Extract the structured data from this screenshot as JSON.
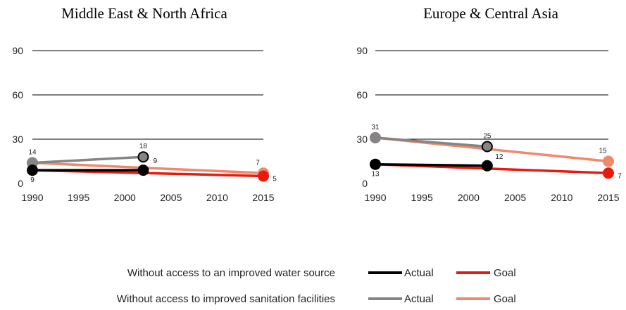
{
  "colors": {
    "water_actual": "#000000",
    "water_goal": "#e8190f",
    "sanitation_actual": "#858585",
    "sanitation_goal": "#f0896c",
    "grid": "#000000",
    "text": "#222222"
  },
  "chart_data": [
    {
      "type": "line",
      "title": "Middle East & North Africa",
      "xlim": [
        1990,
        2015
      ],
      "ylim": [
        0,
        90
      ],
      "x_ticks": [
        "1990",
        "1995",
        "2000",
        "2005",
        "2010",
        "2015"
      ],
      "y_ticks": [
        "0",
        "30",
        "60",
        "90"
      ],
      "grid": true,
      "series": [
        {
          "key": "sanitation_goal",
          "name": "Goal",
          "points": [
            [
              1990,
              14
            ],
            [
              2015,
              7
            ]
          ],
          "markers": [
            1,
            1
          ],
          "labels": [
            null,
            "7"
          ]
        },
        {
          "key": "sanitation_actual",
          "name": "Actual",
          "points": [
            [
              1990,
              14
            ],
            [
              2002,
              18
            ]
          ],
          "markers": [
            1,
            1
          ],
          "labels": [
            "14",
            "18"
          ]
        },
        {
          "key": "water_goal",
          "name": "Goal",
          "points": [
            [
              1990,
              9
            ],
            [
              2015,
              5
            ]
          ],
          "markers": [
            0,
            1
          ],
          "labels": [
            null,
            "5"
          ]
        },
        {
          "key": "water_actual",
          "name": "Actual",
          "points": [
            [
              1990,
              9
            ],
            [
              2002,
              9
            ]
          ],
          "markers": [
            1,
            1
          ],
          "labels": [
            "9",
            "9"
          ]
        }
      ]
    },
    {
      "type": "line",
      "title": "Europe & Central Asia",
      "xlim": [
        1990,
        2015
      ],
      "ylim": [
        0,
        90
      ],
      "x_ticks": [
        "1990",
        "1995",
        "2000",
        "2005",
        "2010",
        "2015"
      ],
      "y_ticks": [
        "0",
        "30",
        "60",
        "90"
      ],
      "grid": true,
      "series": [
        {
          "key": "sanitation_goal",
          "name": "Goal",
          "points": [
            [
              1990,
              31
            ],
            [
              2015,
              15
            ]
          ],
          "markers": [
            1,
            1
          ],
          "labels": [
            null,
            "15"
          ]
        },
        {
          "key": "sanitation_actual",
          "name": "Actual",
          "points": [
            [
              1990,
              31
            ],
            [
              2002,
              25
            ]
          ],
          "markers": [
            1,
            1
          ],
          "labels": [
            "31",
            "25"
          ]
        },
        {
          "key": "water_goal",
          "name": "Goal",
          "points": [
            [
              1990,
              13
            ],
            [
              2015,
              7
            ]
          ],
          "markers": [
            0,
            1
          ],
          "labels": [
            null,
            "7"
          ]
        },
        {
          "key": "water_actual",
          "name": "Actual",
          "points": [
            [
              1990,
              13
            ],
            [
              2002,
              12
            ]
          ],
          "markers": [
            1,
            1
          ],
          "labels": [
            "13",
            "12"
          ]
        }
      ]
    }
  ],
  "legend": {
    "rows": [
      {
        "label": "Without access to an improved water source",
        "actual_key": "water_actual",
        "goal_key": "water_goal",
        "actual_label": "Actual",
        "goal_label": "Goal"
      },
      {
        "label": "Without access to improved sanitation facilities",
        "actual_key": "sanitation_actual",
        "goal_key": "sanitation_goal",
        "actual_label": "Actual",
        "goal_label": "Goal"
      }
    ]
  }
}
